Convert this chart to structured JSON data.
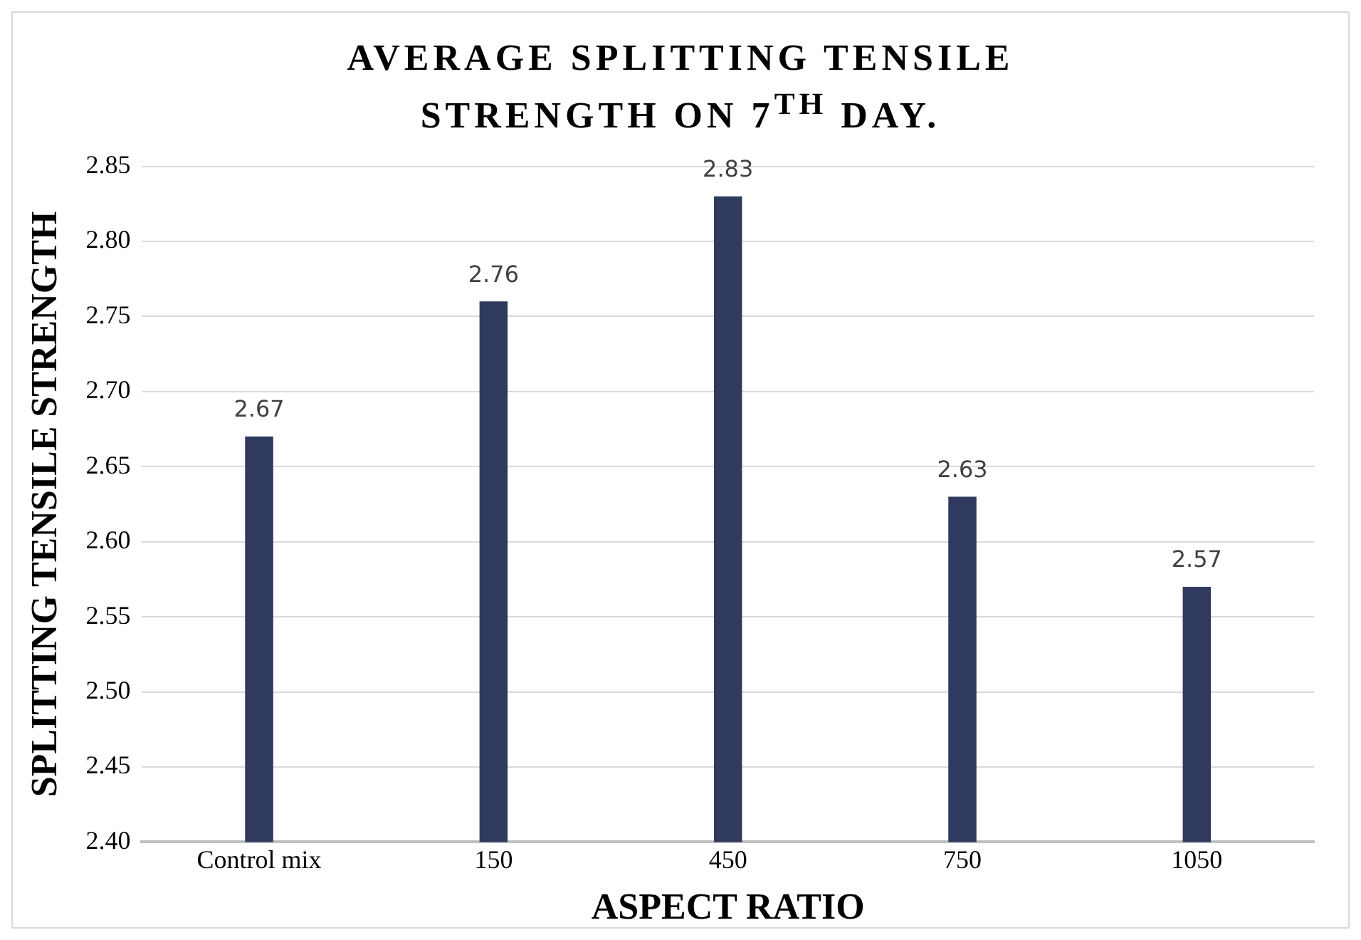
{
  "chart_data": {
    "type": "bar",
    "title": "AVERAGE SPLITTING TENSILE STRENGTH ON 7$^{TH}$ DAY.",
    "xlabel": "ASPECT RATIO",
    "ylabel": "SPLITTING TENSILE STRENGTH",
    "categories": [
      "Control mix",
      "150",
      "450",
      "750",
      "1050"
    ],
    "values": [
      2.67,
      2.76,
      2.83,
      2.63,
      2.57
    ],
    "color": "#2f3a5e",
    "ylim": [
      2.4,
      2.85
    ],
    "yticks": [
      {
        "value": 2.4,
        "label": "2.40"
      },
      2.45,
      {
        "value": 2.5,
        "label": "2.50"
      },
      2.55,
      {
        "value": 2.6,
        "label": "2.60"
      },
      2.65,
      {
        "value": 2.7,
        "label": "2.70"
      },
      2.75,
      {
        "value": 2.8,
        "label": "2.80"
      },
      2.85
    ],
    "grid": "y",
    "legend": false,
    "data_labels": true
  }
}
